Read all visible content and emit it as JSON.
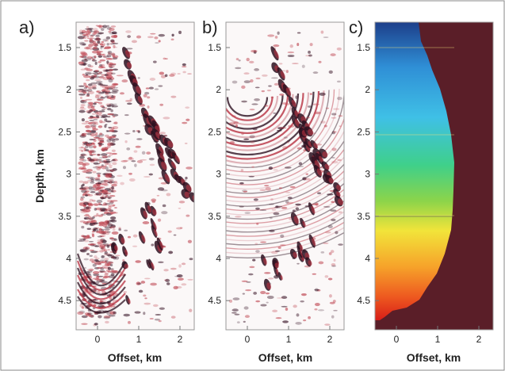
{
  "figure": {
    "panels": [
      {
        "id": "a",
        "letter": "a)",
        "kind": "seismic-image-a"
      },
      {
        "id": "b",
        "letter": "b)",
        "kind": "seismic-image-b"
      },
      {
        "id": "c",
        "letter": "c)",
        "kind": "velocity-model"
      }
    ],
    "y_axis_label": "Depth, km",
    "x_axis_label": "Offset, km",
    "y_ticks": [
      "1.5",
      "2",
      "2.5",
      "3",
      "3.5",
      "4",
      "4.5"
    ],
    "x_ticks": [
      "0",
      "1",
      "2"
    ],
    "colors": {
      "background_region": "#5a1e28",
      "velocity_top": "#1a4a8a",
      "velocity_bottom": "#e8241a",
      "wavelet_dark": "#3a1628",
      "wavelet_red": "#b8323c"
    }
  }
}
